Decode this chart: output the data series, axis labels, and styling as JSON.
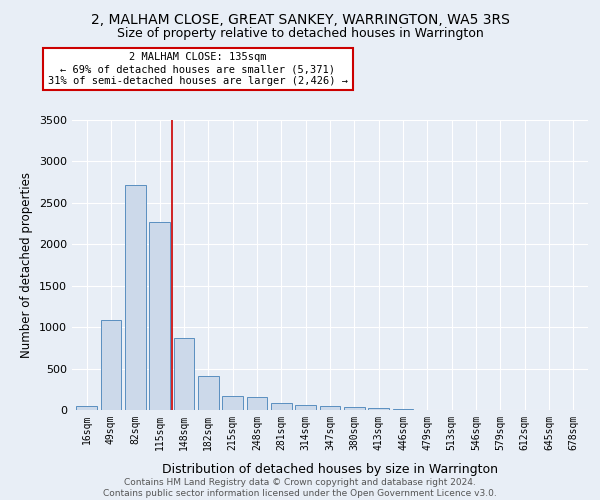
{
  "title": "2, MALHAM CLOSE, GREAT SANKEY, WARRINGTON, WA5 3RS",
  "subtitle": "Size of property relative to detached houses in Warrington",
  "xlabel": "Distribution of detached houses by size in Warrington",
  "ylabel": "Number of detached properties",
  "bar_labels": [
    "16sqm",
    "49sqm",
    "82sqm",
    "115sqm",
    "148sqm",
    "182sqm",
    "215sqm",
    "248sqm",
    "281sqm",
    "314sqm",
    "347sqm",
    "380sqm",
    "413sqm",
    "446sqm",
    "479sqm",
    "513sqm",
    "546sqm",
    "579sqm",
    "612sqm",
    "645sqm",
    "678sqm"
  ],
  "bar_values": [
    50,
    1090,
    2710,
    2270,
    870,
    415,
    170,
    160,
    90,
    65,
    45,
    35,
    25,
    15,
    5,
    3,
    2,
    1,
    0,
    0,
    0
  ],
  "bar_color": "#ccd9ea",
  "bar_edge_color": "#5a8fc0",
  "ylim_max": 3500,
  "yticks": [
    0,
    500,
    1000,
    1500,
    2000,
    2500,
    3000,
    3500
  ],
  "property_bin_index": 3,
  "annotation_title": "2 MALHAM CLOSE: 135sqm",
  "annotation_line1": "← 69% of detached houses are smaller (5,371)",
  "annotation_line2": "31% of semi-detached houses are larger (2,426) →",
  "ann_box_facecolor": "#ffffff",
  "ann_box_edgecolor": "#cc0000",
  "vline_color": "#cc0000",
  "bg_color": "#e8eef6",
  "grid_color": "#ffffff",
  "footer_line1": "Contains HM Land Registry data © Crown copyright and database right 2024.",
  "footer_line2": "Contains public sector information licensed under the Open Government Licence v3.0."
}
